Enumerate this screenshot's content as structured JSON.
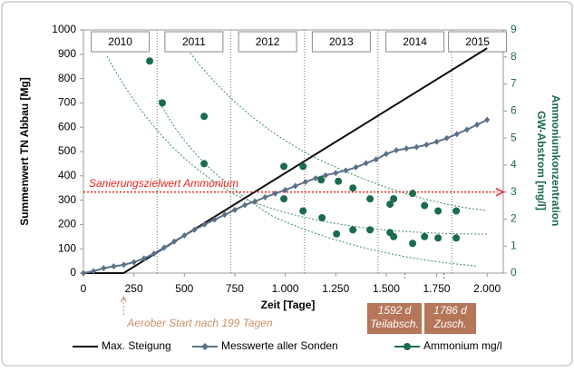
{
  "chart_data": {
    "type": "line",
    "xlabel": "Zeit [Tage]",
    "ylabel": "Summenwert TN Abbau [Mg]",
    "y2label": [
      "Ammoniumkonzentration",
      "GW-Abstrom [mg/l]"
    ],
    "xlim": [
      0,
      2080
    ],
    "ylim": [
      0,
      1000
    ],
    "y2lim": [
      0,
      9
    ],
    "xticks": [
      0,
      250,
      500,
      750,
      {
        "value": 1000,
        "label": "1.000"
      },
      {
        "value": 1250,
        "label": "1.250"
      },
      {
        "value": 1500,
        "label": "1.500"
      },
      {
        "value": 1750,
        "label": "1.750"
      },
      {
        "value": 2000,
        "label": "2.000"
      }
    ],
    "yticks": [
      0,
      100,
      200,
      300,
      400,
      500,
      600,
      700,
      800,
      900,
      1000
    ],
    "y2ticks": [
      0,
      1,
      2,
      3,
      4,
      5,
      6,
      7,
      8,
      9
    ],
    "years": [
      "2010",
      "2011",
      "2012",
      "2013",
      "2014",
      "2015"
    ],
    "year_lines": [
      365,
      730,
      1095,
      1460,
      1825
    ],
    "series": [
      {
        "name": "Max. Steigung",
        "color": "#111111",
        "x": [
          0,
          199,
          2000
        ],
        "values": [
          0,
          0,
          925
        ]
      },
      {
        "name": "Messwerte aller Sonden",
        "color": "#5a7088",
        "marker": "diamond",
        "x": [
          0,
          50,
          100,
          150,
          200,
          250,
          300,
          350,
          400,
          450,
          500,
          550,
          600,
          650,
          700,
          750,
          800,
          850,
          900,
          950,
          1000,
          1050,
          1100,
          1150,
          1200,
          1250,
          1300,
          1350,
          1400,
          1450,
          1500,
          1550,
          1600,
          1650,
          1700,
          1750,
          1800,
          1850,
          1900,
          1950,
          2000
        ],
        "values": [
          0,
          8,
          20,
          28,
          34,
          45,
          60,
          80,
          105,
          130,
          155,
          178,
          200,
          220,
          240,
          260,
          280,
          295,
          312,
          327,
          342,
          358,
          375,
          390,
          402,
          412,
          422,
          435,
          452,
          468,
          490,
          505,
          512,
          518,
          528,
          540,
          555,
          572,
          590,
          610,
          630
        ]
      },
      {
        "name": "Ammonium mg/l",
        "color": "#1b6b4d",
        "axis": "y2",
        "marker": "circle",
        "x": [
          328,
          391,
          598,
          598,
          993,
          1088,
          993,
          1088,
          1178,
          1182,
          1263,
          1254,
          1335,
          1335,
          1420,
          1420,
          1519,
          1537,
          1519,
          1537,
          1631,
          1631,
          1690,
          1690,
          1757,
          1757,
          1847,
          1847
        ],
        "values": [
          7.85,
          6.3,
          5.8,
          4.05,
          3.95,
          3.95,
          2.75,
          2.3,
          3.45,
          2.05,
          3.4,
          1.45,
          3.15,
          1.6,
          2.75,
          1.6,
          2.55,
          2.75,
          1.5,
          1.35,
          2.95,
          1.1,
          2.5,
          1.35,
          2.3,
          1.3,
          2.3,
          1.3
        ]
      }
    ],
    "target": {
      "label": "Sanierungszielwert  Ammonium",
      "value": 3,
      "color": "#e8251b"
    },
    "start": {
      "label": "Aerober Start nach 199 Tagen",
      "value": 199
    },
    "events": [
      {
        "value": 1592,
        "label": [
          "1592 d",
          "Teilabsch."
        ]
      },
      {
        "value": 1786,
        "label": [
          "1786 d",
          "Zusch."
        ]
      }
    ]
  }
}
